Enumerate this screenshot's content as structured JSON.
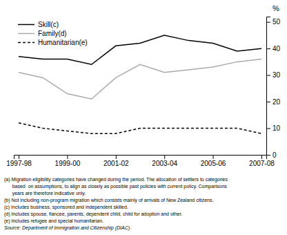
{
  "chart_data": {
    "type": "line",
    "y_label": "%",
    "categories": [
      "1997-98",
      null,
      "1999-00",
      null,
      "2001-02",
      null,
      "2003-04",
      null,
      "2005-06",
      null,
      "2007-08"
    ],
    "series": [
      {
        "name": "Skill(c)",
        "color": "#000000",
        "line_style": "solid",
        "values": [
          37,
          36,
          36,
          34,
          41,
          42,
          45,
          43,
          42,
          39,
          40
        ]
      },
      {
        "name": "Family(d)",
        "color": "#aaaaaa",
        "line_style": "solid",
        "values": [
          31,
          29,
          23,
          21,
          29,
          34,
          31,
          32,
          33,
          35,
          36
        ]
      },
      {
        "name": "Humanitarian(e)",
        "color": "#000000",
        "line_style": "dashed",
        "values": [
          12,
          10,
          9,
          8,
          8,
          10,
          10,
          10,
          10,
          10,
          8
        ]
      }
    ],
    "ylim": [
      0,
      52
    ],
    "yticks": [
      0,
      10,
      20,
      30,
      40,
      50
    ],
    "grid": false,
    "legend": "upper left",
    "annotations": [
      "(a) Migration eligibility categories have changed during the period. The allocation of settlers to categories",
      "      based  on assumptions, to align as closely as possible past policies with current policy. Comparisons",
      "      years are therefore indicative only.",
      "(b) Not including non-program migration which consists mainly of arrivals of New Zealand citizens.",
      "(c) Includes business, sponsored and independent skilled.",
      "(d) Includes spouse, fiancee, parents, dependent child, child for adoption and other.",
      "(e) Includes refugee and special humanitarian.",
      "Source: Department of Immigration and Citizenship (DIAC)."
    ]
  }
}
